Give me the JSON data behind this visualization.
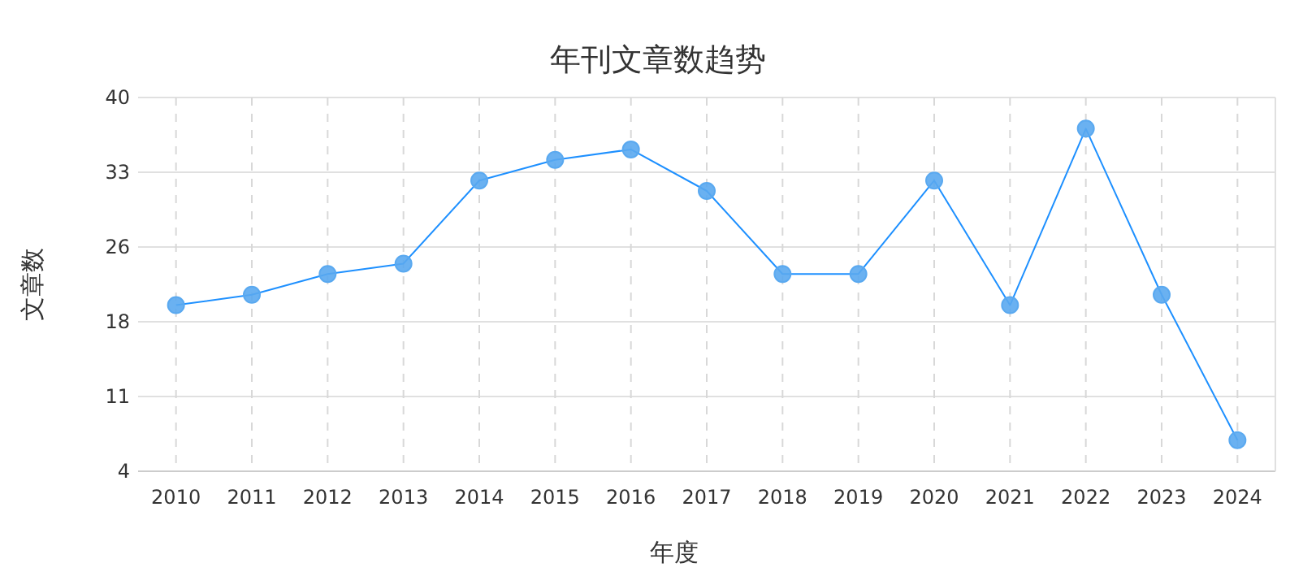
{
  "chart_data": {
    "type": "line",
    "title": "年刊文章数趋势",
    "xlabel": "年度",
    "ylabel": "文章数",
    "categories": [
      "2010",
      "2011",
      "2012",
      "2013",
      "2014",
      "2015",
      "2016",
      "2017",
      "2018",
      "2019",
      "2020",
      "2021",
      "2022",
      "2023",
      "2024"
    ],
    "series": [
      {
        "color": "#1e90ff",
        "values": [
          20,
          21,
          23,
          24,
          32,
          34,
          35,
          31,
          23,
          23,
          32,
          20,
          37,
          21,
          7
        ]
      }
    ],
    "ylim": [
      4,
      40
    ],
    "yticks": [
      4,
      {
        "value": 11.2,
        "label": "11"
      },
      {
        "value": 18.4,
        "label": "18"
      },
      {
        "value": 25.6,
        "label": "26"
      },
      {
        "value": 32.8,
        "label": "33"
      },
      40
    ],
    "grid": true,
    "marker": "circle",
    "line_style": "solid"
  }
}
